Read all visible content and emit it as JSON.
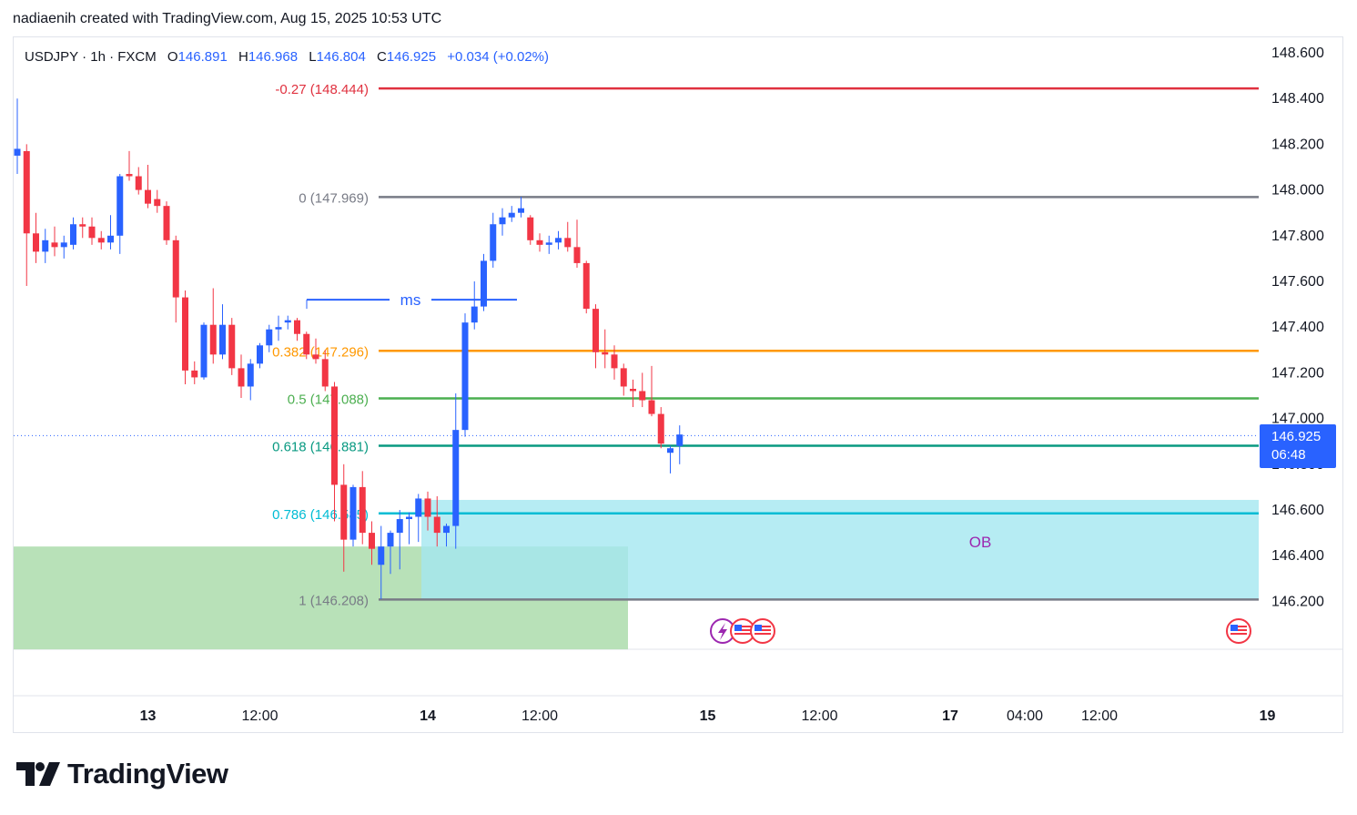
{
  "header": {
    "attribution": "nadiaenih created with TradingView.com, Aug 15, 2025 10:53 UTC"
  },
  "legend": {
    "symbol": "USDJPY · 1h · FXCM",
    "open_label": "O",
    "open": "146.891",
    "high_label": "H",
    "high": "146.968",
    "low_label": "L",
    "low": "146.804",
    "close_label": "C",
    "close": "146.925",
    "change": "+0.034 (+0.02%)"
  },
  "price_tag": {
    "price": "146.925",
    "countdown": "06:48"
  },
  "brand": {
    "name": "TradingView"
  },
  "colors": {
    "up": "#2962ff",
    "down": "#f23645",
    "fib_neg": "#e0313f",
    "fib_0": "#787b86",
    "fib_382": "#ff9800",
    "fib_5": "#4caf50",
    "fib_618": "#089981",
    "fib_786": "#00bcd4",
    "fib_1": "#787b86",
    "ob_zone": "#a4e7f0",
    "green_zone": "#b4dfb4",
    "ms_line": "#2962ff",
    "ob_text": "#9c27b0"
  },
  "chart_data": {
    "type": "candlestick",
    "symbol": "USDJPY",
    "timeframe": "1h",
    "exchange": "FXCM",
    "ylim": [
      145.9,
      148.62
    ],
    "y_ticks": [
      "148.600",
      "148.400",
      "148.200",
      "148.000",
      "147.800",
      "147.600",
      "147.400",
      "147.200",
      "147.000",
      "146.800",
      "146.600",
      "146.400",
      "146.200"
    ],
    "y_tick_values": [
      148.6,
      148.4,
      148.2,
      148.0,
      147.8,
      147.6,
      147.4,
      147.2,
      147.0,
      146.8,
      146.6,
      146.4,
      146.2
    ],
    "x_ticks": [
      "13",
      "12:00",
      "14",
      "12:00",
      "15",
      "12:00",
      "17",
      "04:00",
      "12:00",
      "19",
      "12:00"
    ],
    "x_tick_bars": [
      14,
      26,
      44,
      56,
      74,
      86,
      100,
      108,
      116,
      134,
      146
    ],
    "x_tick_bold": [
      true,
      false,
      true,
      false,
      true,
      false,
      true,
      false,
      false,
      true,
      false
    ],
    "candles": [
      [
        148.15,
        148.4,
        148.07,
        148.18
      ],
      [
        148.17,
        148.2,
        147.58,
        147.81
      ],
      [
        147.81,
        147.9,
        147.68,
        147.73
      ],
      [
        147.73,
        147.83,
        147.68,
        147.78
      ],
      [
        147.77,
        147.84,
        147.71,
        147.75
      ],
      [
        147.75,
        147.8,
        147.7,
        147.77
      ],
      [
        147.76,
        147.88,
        147.74,
        147.85
      ],
      [
        147.85,
        147.88,
        147.79,
        147.84
      ],
      [
        147.84,
        147.88,
        147.76,
        147.79
      ],
      [
        147.79,
        147.82,
        147.74,
        147.77
      ],
      [
        147.77,
        147.89,
        147.74,
        147.8
      ],
      [
        147.8,
        148.07,
        147.72,
        148.06
      ],
      [
        148.07,
        148.17,
        148.04,
        148.06
      ],
      [
        148.06,
        148.1,
        147.98,
        148.0
      ],
      [
        148.0,
        148.11,
        147.92,
        147.94
      ],
      [
        147.96,
        148.0,
        147.9,
        147.93
      ],
      [
        147.93,
        147.95,
        147.76,
        147.78
      ],
      [
        147.78,
        147.8,
        147.42,
        147.53
      ],
      [
        147.53,
        147.56,
        147.15,
        147.21
      ],
      [
        147.21,
        147.25,
        147.15,
        147.18
      ],
      [
        147.18,
        147.42,
        147.17,
        147.41
      ],
      [
        147.41,
        147.57,
        147.24,
        147.28
      ],
      [
        147.28,
        147.5,
        147.26,
        147.41
      ],
      [
        147.41,
        147.44,
        147.19,
        147.22
      ],
      [
        147.22,
        147.28,
        147.09,
        147.14
      ],
      [
        147.14,
        147.26,
        147.08,
        147.24
      ],
      [
        147.24,
        147.33,
        147.22,
        147.32
      ],
      [
        147.32,
        147.41,
        147.29,
        147.39
      ],
      [
        147.39,
        147.45,
        147.34,
        147.4
      ],
      [
        147.42,
        147.45,
        147.39,
        147.43
      ],
      [
        147.43,
        147.44,
        147.34,
        147.37
      ],
      [
        147.37,
        147.38,
        147.26,
        147.28
      ],
      [
        147.28,
        147.35,
        147.24,
        147.26
      ],
      [
        147.26,
        147.3,
        147.12,
        147.14
      ],
      [
        147.14,
        147.16,
        146.55,
        146.71
      ],
      [
        146.71,
        146.8,
        146.33,
        146.47
      ],
      [
        146.47,
        146.71,
        146.44,
        146.7
      ],
      [
        146.7,
        146.77,
        146.45,
        146.5
      ],
      [
        146.5,
        146.55,
        146.36,
        146.43
      ],
      [
        146.36,
        146.53,
        146.21,
        146.44
      ],
      [
        146.44,
        146.51,
        146.32,
        146.5
      ],
      [
        146.5,
        146.6,
        146.34,
        146.56
      ],
      [
        146.56,
        146.59,
        146.45,
        146.57
      ],
      [
        146.57,
        146.67,
        146.46,
        146.65
      ],
      [
        146.65,
        146.68,
        146.51,
        146.57
      ],
      [
        146.57,
        146.66,
        146.44,
        146.5
      ],
      [
        146.5,
        146.54,
        146.44,
        146.53
      ],
      [
        146.53,
        147.11,
        146.43,
        146.95
      ],
      [
        146.95,
        147.46,
        146.92,
        147.42
      ],
      [
        147.42,
        147.6,
        147.39,
        147.49
      ],
      [
        147.49,
        147.72,
        147.47,
        147.69
      ],
      [
        147.69,
        147.9,
        147.66,
        147.85
      ],
      [
        147.85,
        147.92,
        147.8,
        147.88
      ],
      [
        147.88,
        147.93,
        147.86,
        147.9
      ],
      [
        147.9,
        147.97,
        147.88,
        147.92
      ],
      [
        147.88,
        147.89,
        147.76,
        147.78
      ],
      [
        147.78,
        147.81,
        147.73,
        147.76
      ],
      [
        147.76,
        147.8,
        147.72,
        147.77
      ],
      [
        147.77,
        147.82,
        147.74,
        147.79
      ],
      [
        147.79,
        147.86,
        147.73,
        147.75
      ],
      [
        147.75,
        147.87,
        147.66,
        147.68
      ],
      [
        147.68,
        147.69,
        147.46,
        147.48
      ],
      [
        147.48,
        147.5,
        147.22,
        147.29
      ],
      [
        147.29,
        147.39,
        147.22,
        147.28
      ],
      [
        147.28,
        147.32,
        147.17,
        147.22
      ],
      [
        147.22,
        147.24,
        147.1,
        147.14
      ],
      [
        147.13,
        147.17,
        147.05,
        147.12
      ],
      [
        147.12,
        147.2,
        147.05,
        147.08
      ],
      [
        147.08,
        147.23,
        147.01,
        147.02
      ],
      [
        147.02,
        147.05,
        146.87,
        146.89
      ],
      [
        146.85,
        146.88,
        146.76,
        146.87
      ],
      [
        146.88,
        146.97,
        146.8,
        146.93
      ]
    ],
    "fib_levels": [
      {
        "label": "-0.27 (148.444)",
        "value": 148.444,
        "colorKey": "fib_neg"
      },
      {
        "label": "0 (147.969)",
        "value": 147.969,
        "colorKey": "fib_0"
      },
      {
        "label": "0.382 (147.296)",
        "value": 147.296,
        "colorKey": "fib_382"
      },
      {
        "label": "0.5 (147.088)",
        "value": 147.088,
        "colorKey": "fib_5"
      },
      {
        "label": "0.618 (146.881)",
        "value": 146.881,
        "colorKey": "fib_618"
      },
      {
        "label": "0.786 (146.585)",
        "value": 146.585,
        "colorKey": "fib_786"
      },
      {
        "label": "1 (146.208)",
        "value": 146.208,
        "colorKey": "fib_1"
      }
    ],
    "ms_label": "ms",
    "ms_level": 147.52,
    "ob_label": "OB",
    "ob_zone": {
      "top": 146.644,
      "bottom": 146.21
    },
    "green_zone": {
      "top": 146.44,
      "bottom": 145.99
    },
    "last_price": 146.925
  }
}
